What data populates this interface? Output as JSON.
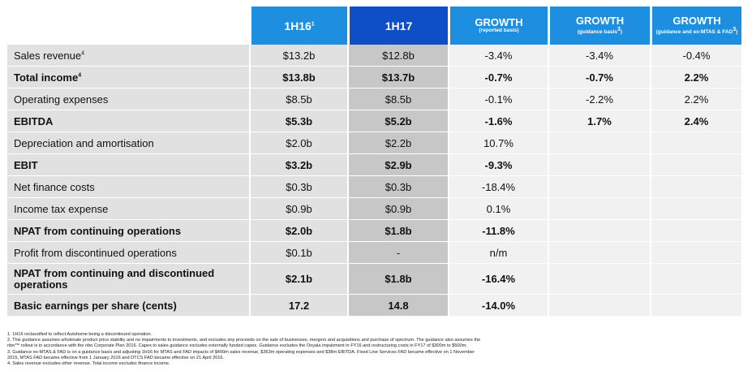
{
  "header": {
    "col1": {
      "label": "1H16",
      "sup": "1"
    },
    "col2": {
      "label": "1H17"
    },
    "growth1": {
      "title": "GROWTH",
      "sub": "(reported basis)"
    },
    "growth2": {
      "title": "GROWTH",
      "sub": "(guidance basis",
      "sup": "3",
      "close": ")"
    },
    "growth3": {
      "title": "GROWTH",
      "sub": "(guidance and ex-MTAS & FAD",
      "sup": "3",
      "close": ")"
    }
  },
  "rows": [
    {
      "label": "Sales revenue",
      "sup": "4",
      "bold": false,
      "h16": "$13.2b",
      "h17": "$12.8b",
      "g1": "-3.4%",
      "g2": "-3.4%",
      "g3": "-0.4%"
    },
    {
      "label": "Total income",
      "sup": "4",
      "bold": true,
      "h16": "$13.8b",
      "h17": "$13.7b",
      "g1": "-0.7%",
      "g2": "-0.7%",
      "g3": "2.2%"
    },
    {
      "label": "Operating expenses",
      "sup": "",
      "bold": false,
      "h16": "$8.5b",
      "h17": "$8.5b",
      "g1": "-0.1%",
      "g2": "-2.2%",
      "g3": "2.2%"
    },
    {
      "label": "EBITDA",
      "sup": "",
      "bold": true,
      "h16": "$5.3b",
      "h17": "$5.2b",
      "g1": "-1.6%",
      "g2": "1.7%",
      "g3": "2.4%"
    },
    {
      "label": "Depreciation and amortisation",
      "sup": "",
      "bold": false,
      "h16": "$2.0b",
      "h17": "$2.2b",
      "g1": "10.7%",
      "g2": "",
      "g3": ""
    },
    {
      "label": "EBIT",
      "sup": "",
      "bold": true,
      "h16": "$3.2b",
      "h17": "$2.9b",
      "g1": "-9.3%",
      "g2": "",
      "g3": ""
    },
    {
      "label": "Net finance costs",
      "sup": "",
      "bold": false,
      "h16": "$0.3b",
      "h17": "$0.3b",
      "g1": "-18.4%",
      "g2": "",
      "g3": ""
    },
    {
      "label": "Income tax expense",
      "sup": "",
      "bold": false,
      "h16": "$0.9b",
      "h17": "$0.9b",
      "g1": "0.1%",
      "g2": "",
      "g3": ""
    },
    {
      "label": "NPAT from continuing operations",
      "sup": "",
      "bold": true,
      "h16": "$2.0b",
      "h17": "$1.8b",
      "g1": "-11.8%",
      "g2": "",
      "g3": ""
    },
    {
      "label": "Profit from discontinued operations",
      "sup": "",
      "bold": false,
      "h16": "$0.1b",
      "h17": "-",
      "g1": "n/m",
      "g2": "",
      "g3": ""
    },
    {
      "label": "NPAT from continuing and discontinued operations",
      "sup": "",
      "bold": true,
      "h16": "$2.1b",
      "h17": "$1.8b",
      "g1": "-16.4%",
      "g2": "",
      "g3": ""
    },
    {
      "label": "Basic earnings per share (cents)",
      "sup": "",
      "bold": true,
      "h16": "17.2",
      "h17": "14.8",
      "g1": "-14.0%",
      "g2": "",
      "g3": ""
    }
  ],
  "footnotes": [
    "1. 1H16 reclassified to reflect Autohome being a discontinued operation.",
    "2. This guidance assumes wholesale product price stability and no impairments to investments, and excludes any proceeds on the sale of businesses, mergers and acquisitions and purchase of spectrum. The guidance also assumes the",
    "    nbn™ rollout is in accordance with the nbn Corporate Plan 2016. Capex to sales guidance excludes externally funded capex. Guidance excludes the Ooyala impairment in FY16 and restructuring costs in FY17 of $300m to $500m.",
    "3. Guidance ex-MTAS & FAD is on a guidance basis and adjusting 1H16 for MTAS and FAD impacts of $400m sales revenue, $363m operating expenses and $38m EBITDA. Fixed Line Services FAD became effective on 1 November",
    "    2015, MTAS FAD became effective from 1 January 2016 and DTCS FAD became effective on 21 April 2016.",
    "4. Sales revenue excludes other revenue. Total income excludes finance income."
  ]
}
